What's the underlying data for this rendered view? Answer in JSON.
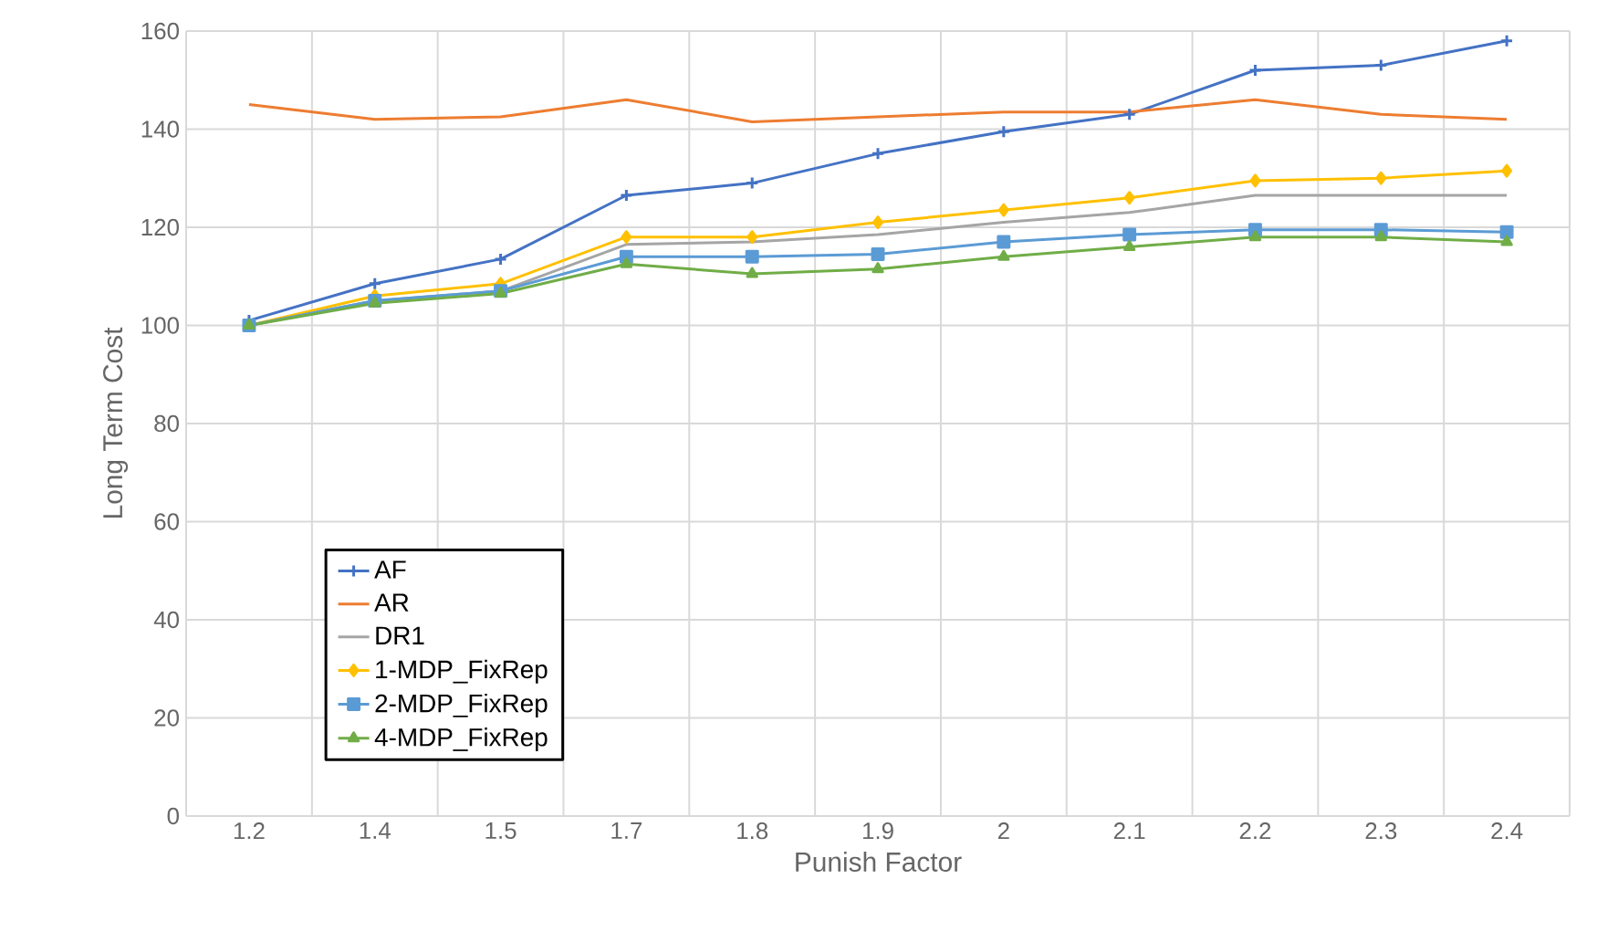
{
  "chart_data": {
    "type": "line",
    "xlabel": "Punish Factor",
    "ylabel": "Long Term Cost",
    "categories": [
      "1.2",
      "1.4",
      "1.5",
      "1.7",
      "1.8",
      "1.9",
      "2",
      "2.1",
      "2.2",
      "2.3",
      "2.4"
    ],
    "ylim": [
      0,
      160
    ],
    "yticks": [
      0,
      20,
      40,
      60,
      80,
      100,
      120,
      140,
      160
    ],
    "grid": true,
    "legend": "bottom left",
    "series": [
      {
        "name": "AF",
        "color": "#4472c4",
        "marker": "cross",
        "values": [
          101,
          108.5,
          113.5,
          126.5,
          129,
          135,
          139.5,
          143,
          152,
          153,
          158
        ]
      },
      {
        "name": "AR",
        "color": "#ed7d31",
        "marker": "none",
        "values": [
          145,
          142,
          142.5,
          146,
          141.5,
          142.5,
          143.5,
          143.5,
          146,
          143,
          142
        ]
      },
      {
        "name": "DR1",
        "color": "#a5a5a5",
        "marker": "none",
        "values": [
          100,
          105,
          107,
          116.5,
          117,
          118.5,
          121,
          123,
          126.5,
          126.5,
          126.5
        ]
      },
      {
        "name": "1-MDP_FixRep",
        "color": "#ffc000",
        "marker": "diamond",
        "values": [
          100,
          106,
          108.5,
          118,
          118,
          121,
          123.5,
          126,
          129.5,
          130,
          131.5
        ]
      },
      {
        "name": "2-MDP_FixRep",
        "color": "#5b9bd5",
        "marker": "square",
        "values": [
          100,
          105,
          107,
          114,
          114,
          114.5,
          117,
          118.5,
          119.5,
          119.5,
          119
        ]
      },
      {
        "name": "4-MDP_FixRep",
        "color": "#70ad47",
        "marker": "triangle",
        "values": [
          100,
          104.5,
          106.5,
          112.5,
          110.5,
          111.5,
          114,
          116,
          118,
          118,
          117
        ]
      }
    ]
  }
}
